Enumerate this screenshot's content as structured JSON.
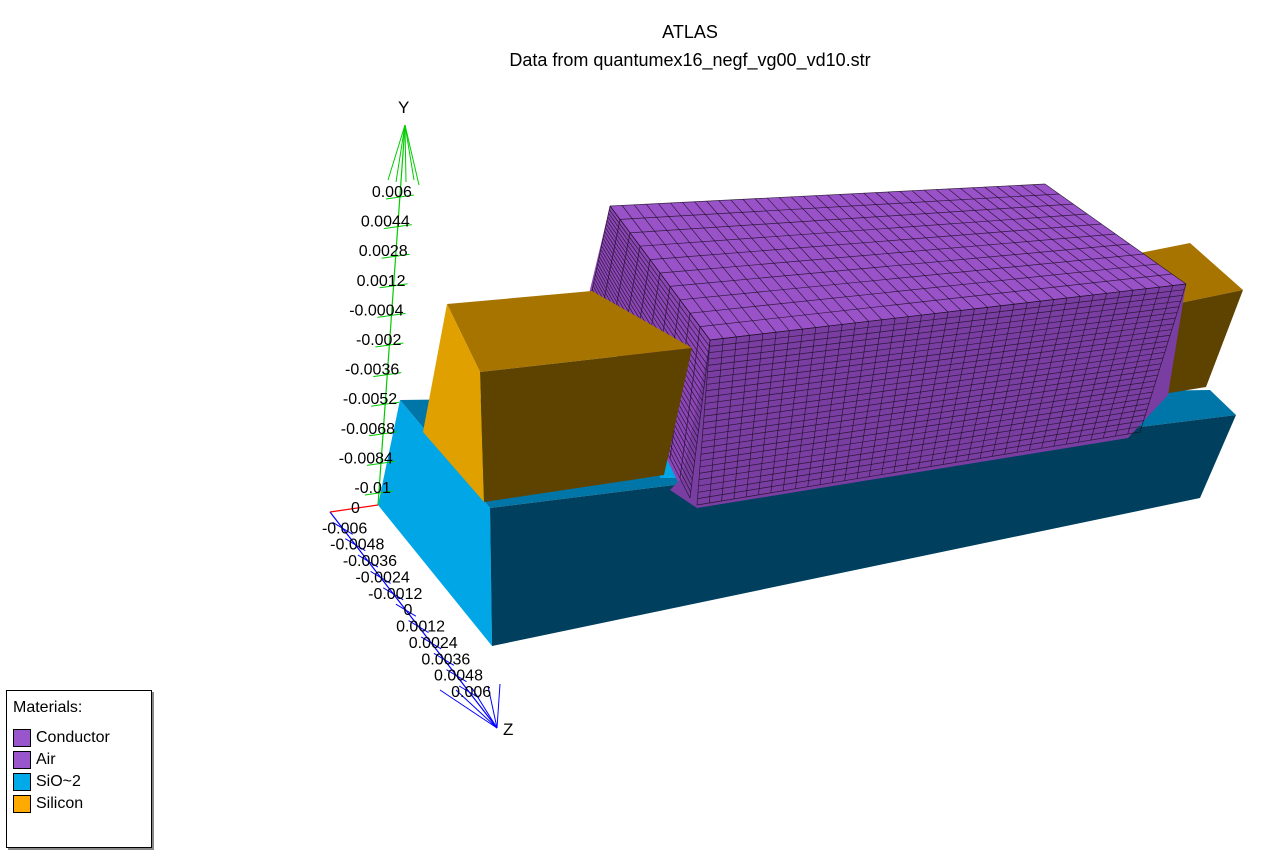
{
  "title": "ATLAS",
  "subtitle": "Data from quantumex16_negf_vg00_vd10.str",
  "axes": {
    "y": {
      "label": "Y",
      "ticks": [
        "0.006",
        "0.0044",
        "0.0028",
        "0.0012",
        "-0.0004",
        "-0.002",
        "-0.0036",
        "-0.0052",
        "-0.0068",
        "-0.0084",
        "-0.01"
      ],
      "color": "#00cc00"
    },
    "x": {
      "origin_label": "0",
      "color": "#ff0000"
    },
    "z": {
      "label": "Z",
      "ticks": [
        "-0.006",
        "-0.0048",
        "-0.0036",
        "-0.0024",
        "-0.0012",
        "0",
        "0.0012",
        "0.0024",
        "0.0036",
        "0.0048",
        "0.006"
      ],
      "color": "#0000ff"
    }
  },
  "legend": {
    "title": "Materials:",
    "items": [
      {
        "label": "Conductor",
        "color": "#9955cc"
      },
      {
        "label": "Air",
        "color": "#9955cc"
      },
      {
        "label": "SiO~2",
        "color": "#00aae8"
      },
      {
        "label": "Silicon",
        "color": "#ffaa00"
      }
    ]
  },
  "colors": {
    "conductor_top": "#9a52c8",
    "conductor_side": "#7a3ea2",
    "conductor_end": "#8c46b6",
    "mesh": "#1c0f26",
    "sio2_light": "#00a6e6",
    "sio2_mid": "#0076a8",
    "sio2_dark": "#00405e",
    "silicon_light": "#e0a000",
    "silicon_mid": "#a87400",
    "silicon_dark": "#5e4200"
  }
}
